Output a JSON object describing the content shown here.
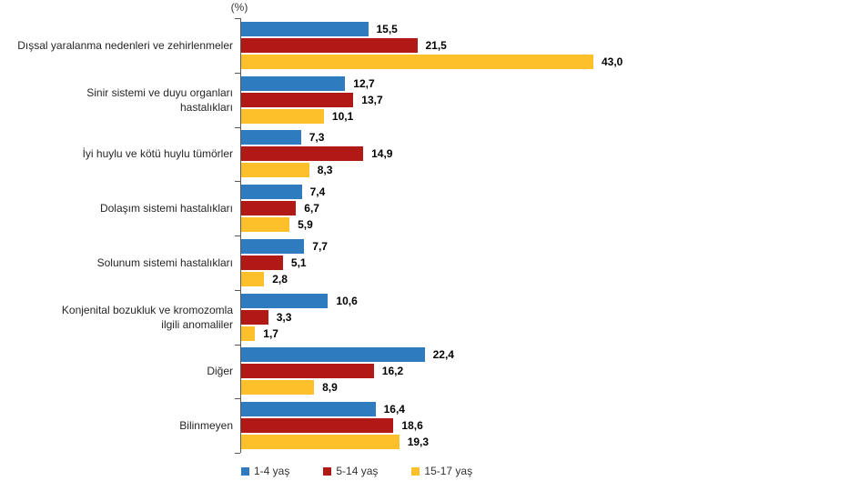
{
  "chart_data": {
    "type": "bar",
    "orientation": "horizontal",
    "unit_label": "(%)",
    "grid": false,
    "legend_position": "bottom",
    "xlim": [
      0,
      43
    ],
    "value_decimal_separator": ",",
    "categories": [
      "Dışsal yaralanma nedenleri ve zehirlenmeler",
      "Sinir sistemi ve duyu organları\nhastalıkları",
      "İyi huylu ve kötü huylu tümörler",
      "Dolaşım sistemi hastalıkları",
      "Solunum sistemi hastalıkları",
      "Konjenital bozukluk ve kromozomla\nilgili anomaliler",
      "Diğer",
      "Bilinmeyen"
    ],
    "series": [
      {
        "name": "1-4 yaş",
        "color": "#2E7CBF",
        "values": [
          15.5,
          12.7,
          7.3,
          7.4,
          7.7,
          10.6,
          22.4,
          16.4
        ]
      },
      {
        "name": "5-14 yaş",
        "color": "#B11917",
        "values": [
          21.5,
          13.7,
          14.9,
          6.7,
          5.1,
          3.3,
          16.2,
          18.6
        ]
      },
      {
        "name": "15-17 yaş",
        "color": "#FDC02B",
        "values": [
          43.0,
          10.1,
          8.3,
          5.9,
          2.8,
          1.7,
          8.9,
          19.3
        ]
      }
    ],
    "colors": {
      "series_1_4": "#2E7CBF",
      "series_5_14": "#B11917",
      "series_15_17": "#FDC02B",
      "axis": "#595959"
    }
  }
}
